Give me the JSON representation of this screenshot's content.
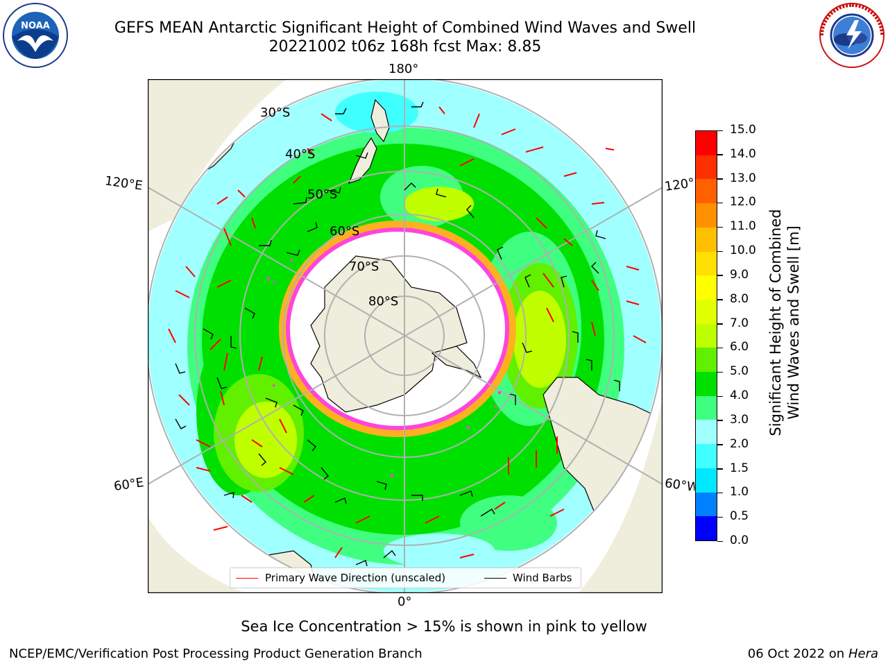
{
  "title": {
    "line1": "GEFS MEAN Antarctic Significant Height of Combined Wind Waves and Swell",
    "line2": "20221002 t06z 168h fcst   Max: 8.85"
  },
  "logos": {
    "left": {
      "text": "NOAA",
      "ring_text": "NATIONAL OCEANIC AND ATMOSPHERIC ADMINISTRATION · U.S. DEPARTMENT OF COMMERCE"
    },
    "right": {
      "ring_text": "NATIONAL WEATHER SERVICE"
    }
  },
  "map": {
    "projection": "south-polar-stereographic",
    "longitude_labels": {
      "top": "180°",
      "bottom": "0°",
      "upper_left": "120°E",
      "lower_left": "60°E",
      "upper_right": "120°W",
      "lower_right": "60°W"
    },
    "latitude_labels": [
      "30°S",
      "40°S",
      "50°S",
      "60°S",
      "70°S",
      "80°S"
    ],
    "colors": {
      "land": "#efeddc",
      "ice": "#ffffff",
      "ice_edge": "#ff44dd",
      "ice_edge2": "#ffb020",
      "grid": "#b0b0b0",
      "arrow": "#ff0000",
      "barb": "#000000"
    }
  },
  "colorbar": {
    "label_line1": "Significant Height of Combined",
    "label_line2": "Wind Waves and Swell [m]",
    "ticks": [
      "15.0",
      "14.0",
      "13.0",
      "12.0",
      "11.0",
      "10.0",
      "9.0",
      "8.0",
      "7.0",
      "6.0",
      "5.0",
      "4.0",
      "3.0",
      "2.0",
      "1.5",
      "1.0",
      "0.5",
      "0.0"
    ],
    "colors": [
      "#0000ff",
      "#0080ff",
      "#00e8ff",
      "#40ffff",
      "#a0ffff",
      "#40ff80",
      "#00e000",
      "#60f000",
      "#c0ff00",
      "#e0ff00",
      "#ffff00",
      "#ffe000",
      "#ffc000",
      "#ff9000",
      "#ff6000",
      "#ff3000",
      "#ff0000"
    ]
  },
  "legend": {
    "primary_wave": "Primary Wave Direction (unscaled)",
    "wind_barbs": "Wind Barbs"
  },
  "note": "Sea Ice Concentration > 15% is shown in pink to yellow",
  "footer": {
    "left": "NCEP/EMC/Verification Post Processing Product Generation Branch",
    "right_date": "06 Oct 2022",
    "right_on": "on",
    "right_host": "Hera"
  }
}
